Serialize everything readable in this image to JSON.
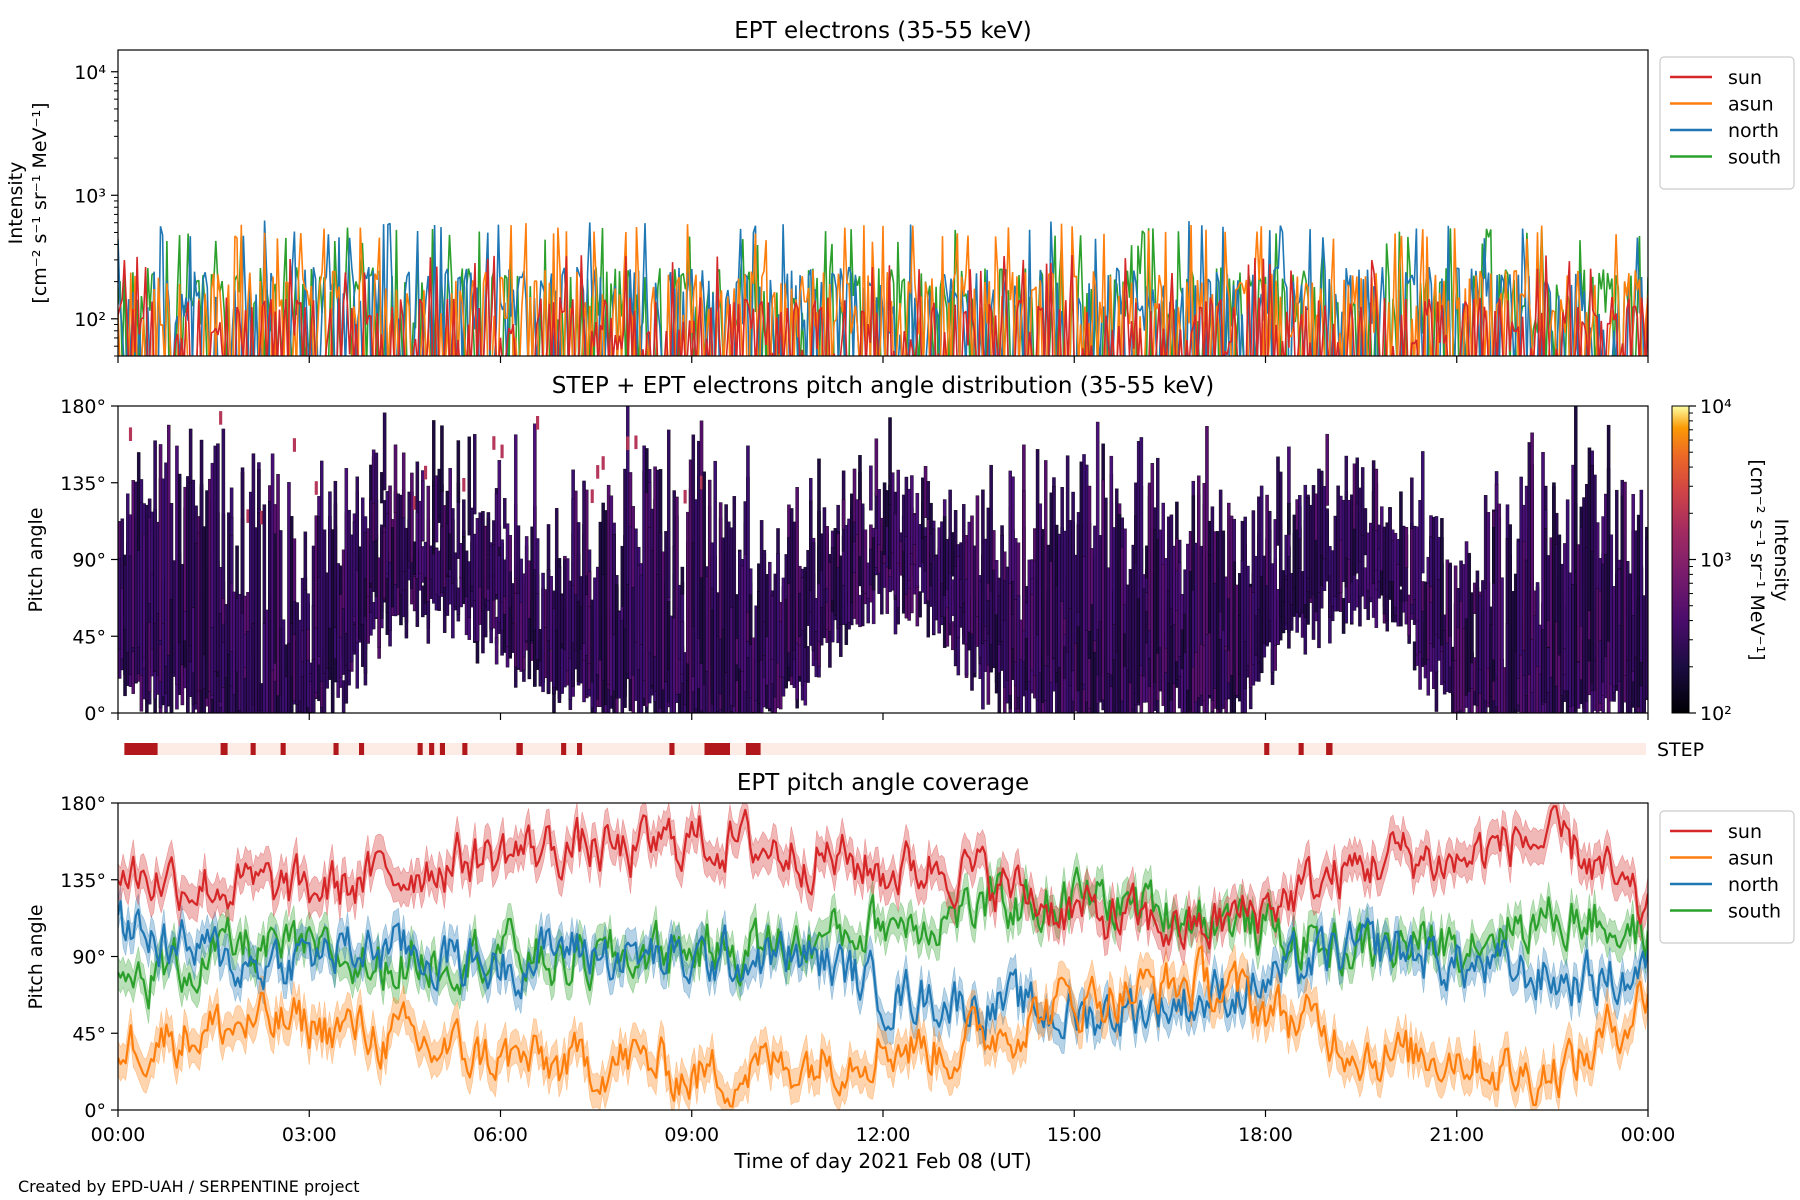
{
  "footer_text": "Created by EPD-UAH / SERPENTINE project",
  "colors": {
    "sun": "#d62728",
    "asun": "#ff7f0e",
    "north": "#1f77b4",
    "south": "#2ca02c",
    "step_bar": "#b2181b",
    "step_bg": "#fdebe6"
  },
  "chart_data": [
    {
      "type": "line",
      "title": "EPT electrons (35-55 keV)",
      "ylabel_line1": "Intensity",
      "ylabel_line2": "[cm⁻² s⁻¹ sr⁻¹ MeV⁻¹]",
      "yscale": "log",
      "ylim": [
        50,
        15000
      ],
      "yticks": [
        100,
        1000,
        10000
      ],
      "ytick_labels": [
        "10²",
        "10³",
        "10⁴"
      ],
      "xlim_hours": [
        0,
        24
      ],
      "legend_position": "outside-right-top",
      "series": [
        {
          "name": "sun",
          "baseline": 120,
          "max": 330,
          "color_key": "sun"
        },
        {
          "name": "asun",
          "baseline": 200,
          "max": 600,
          "color_key": "asun"
        },
        {
          "name": "north",
          "baseline": 210,
          "max": 630,
          "color_key": "north"
        },
        {
          "name": "south",
          "baseline": 210,
          "max": 550,
          "color_key": "south"
        }
      ],
      "draw_order": [
        "south",
        "north",
        "asun",
        "sun"
      ]
    },
    {
      "type": "heatmap",
      "title": "STEP + EPT electrons pitch angle distribution (35-55 keV)",
      "ylabel": "Pitch angle",
      "ylim": [
        0,
        180
      ],
      "yticks": [
        0,
        45,
        90,
        135,
        180
      ],
      "ytick_labels": [
        "0°",
        "45°",
        "90°",
        "135°",
        "180°"
      ],
      "xlim_hours": [
        0,
        24
      ],
      "colorbar": {
        "scale": "log",
        "range": [
          100,
          10000
        ],
        "ticks": [
          100,
          1000,
          10000
        ],
        "tick_labels": [
          "10²",
          "10³",
          "10⁴"
        ],
        "label_line1": "Intensity",
        "label_line2": "[cm⁻² s⁻¹ sr⁻¹ MeV⁻¹]",
        "colormap": "inferno"
      }
    },
    {
      "type": "bar",
      "label": "STEP",
      "xlim_hours": [
        0,
        24
      ],
      "segments_hours": [
        [
          0.1,
          0.62
        ],
        [
          1.61,
          1.72
        ],
        [
          2.08,
          2.16
        ],
        [
          2.55,
          2.63
        ],
        [
          3.38,
          3.46
        ],
        [
          3.78,
          3.86
        ],
        [
          4.7,
          4.78
        ],
        [
          4.88,
          4.96
        ],
        [
          5.05,
          5.13
        ],
        [
          5.4,
          5.48
        ],
        [
          6.25,
          6.35
        ],
        [
          6.95,
          7.03
        ],
        [
          7.2,
          7.28
        ],
        [
          8.65,
          8.73
        ],
        [
          9.2,
          9.6
        ],
        [
          9.85,
          10.08
        ],
        [
          17.98,
          18.06
        ],
        [
          18.52,
          18.6
        ],
        [
          18.95,
          19.05
        ]
      ]
    },
    {
      "type": "line",
      "title": "EPT pitch angle coverage",
      "ylabel": "Pitch angle",
      "xlabel": "Time of day 2021 Feb 08 (UT)",
      "ylim": [
        0,
        180
      ],
      "yticks": [
        0,
        45,
        90,
        135,
        180
      ],
      "ytick_labels": [
        "0°",
        "45°",
        "90°",
        "135°",
        "180°"
      ],
      "xlim_hours": [
        0,
        24
      ],
      "xticks_hours": [
        0,
        3,
        6,
        9,
        12,
        15,
        18,
        21,
        24
      ],
      "xtick_labels": [
        "00:00",
        "03:00",
        "06:00",
        "09:00",
        "12:00",
        "15:00",
        "18:00",
        "21:00",
        "00:00"
      ],
      "legend_position": "outside-right-top",
      "series": [
        {
          "name": "sun",
          "color_key": "sun",
          "band_halfwidth_deg": 10,
          "x": [
            0,
            1,
            2,
            3,
            4,
            5,
            6,
            7,
            8,
            9,
            10,
            11,
            12,
            13,
            14,
            15,
            16,
            17,
            18,
            19,
            20,
            21,
            22,
            23,
            24
          ],
          "y": [
            140,
            135,
            130,
            128,
            135,
            145,
            150,
            155,
            150,
            160,
            155,
            150,
            140,
            145,
            130,
            115,
            110,
            105,
            120,
            135,
            150,
            145,
            160,
            150,
            110
          ]
        },
        {
          "name": "asun",
          "color_key": "asun",
          "band_halfwidth_deg": 10,
          "x": [
            0,
            1,
            2,
            3,
            4,
            5,
            6,
            7,
            8,
            9,
            10,
            11,
            12,
            13,
            14,
            15,
            16,
            17,
            18,
            19,
            20,
            21,
            22,
            23,
            24
          ],
          "y": [
            40,
            45,
            50,
            50,
            45,
            35,
            30,
            25,
            30,
            20,
            25,
            30,
            40,
            35,
            50,
            65,
            70,
            75,
            60,
            45,
            30,
            35,
            20,
            30,
            70
          ]
        },
        {
          "name": "north",
          "color_key": "north",
          "band_halfwidth_deg": 9,
          "x": [
            0,
            1,
            2,
            3,
            4,
            5,
            6,
            7,
            8,
            9,
            10,
            11,
            12,
            13,
            14,
            15,
            16,
            17,
            18,
            19,
            20,
            21,
            22,
            23,
            24
          ],
          "y": [
            110,
            95,
            85,
            90,
            95,
            90,
            85,
            95,
            90,
            85,
            90,
            88,
            70,
            65,
            60,
            55,
            60,
            65,
            75,
            90,
            95,
            85,
            80,
            75,
            80
          ]
        },
        {
          "name": "south",
          "color_key": "south",
          "band_halfwidth_deg": 9,
          "x": [
            0,
            1,
            2,
            3,
            4,
            5,
            6,
            7,
            8,
            9,
            10,
            11,
            12,
            13,
            14,
            15,
            16,
            17,
            18,
            19,
            20,
            21,
            22,
            23,
            24
          ],
          "y": [
            70,
            85,
            95,
            90,
            85,
            90,
            95,
            85,
            90,
            95,
            95,
            100,
            110,
            115,
            120,
            125,
            120,
            115,
            105,
            95,
            95,
            100,
            110,
            115,
            100
          ]
        }
      ]
    }
  ]
}
